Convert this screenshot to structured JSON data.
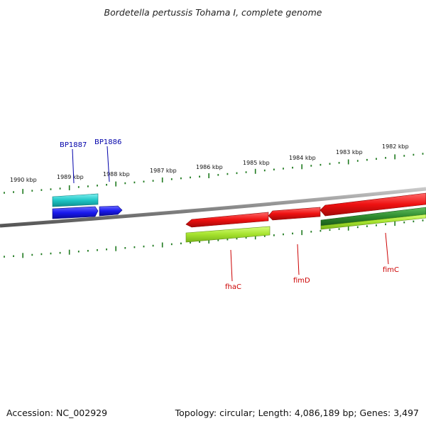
{
  "title": "Bordetella pertussis Tohama I, complete genome",
  "footer": {
    "accession": "Accession: NC_002929",
    "summary": "Topology: circular; Length: 4,086,189 bp; Genes: 3,497"
  },
  "scale": {
    "upper_labels": [
      "1990 kbp",
      "1989 kbp",
      "1988 kbp",
      "1987 kbp",
      "1986 kbp",
      "1985 kbp",
      "1984 kbp",
      "1983 kbp",
      "1982 kbp"
    ]
  },
  "genes": [
    {
      "name": "BP1887",
      "strand": "forward",
      "color": "#1fc6c6"
    },
    {
      "name": "BP1886",
      "strand": "forward",
      "color": "#1a1aee"
    },
    {
      "name": "fhaC",
      "strand": "reverse",
      "color": "#ee1111"
    },
    {
      "name": "fimD",
      "strand": "reverse",
      "color": "#ee1111"
    },
    {
      "name": "fimC",
      "strand": "reverse",
      "color": "#ee1111"
    }
  ],
  "colors": {
    "backbone": "#8a8a8a",
    "tick": "#1f7a1f",
    "cyan": "#1fc6c6",
    "blue": "#1a1aee",
    "red": "#ee1111",
    "lime": "#a6e22e",
    "dark_green": "#2e8b2e",
    "label_blue": "#0000aa",
    "label_red": "#cc0000"
  }
}
